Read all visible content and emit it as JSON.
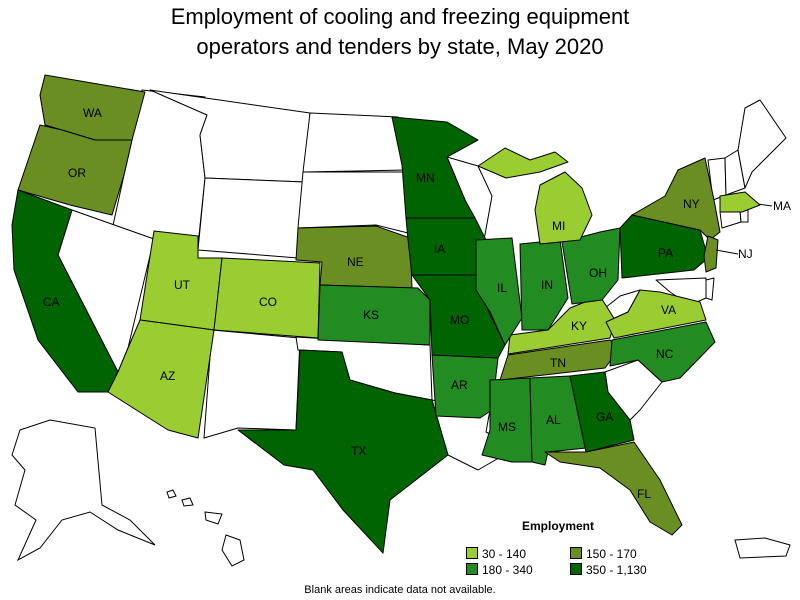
{
  "title_line1": "Employment of cooling and freezing equipment",
  "title_line2": "operators and tenders by state, May 2020",
  "legend": {
    "title": "Employment",
    "items": [
      {
        "label": "30 - 140",
        "color": "#9acd32"
      },
      {
        "label": "150 - 170",
        "color": "#6b8e23"
      },
      {
        "label": "180 - 340",
        "color": "#228b22"
      },
      {
        "label": "350 - 1,130",
        "color": "#006400"
      }
    ]
  },
  "note": "Blank areas indicate data not available.",
  "states": [
    {
      "abbr": "WA",
      "bin": 1
    },
    {
      "abbr": "OR",
      "bin": 1
    },
    {
      "abbr": "CA",
      "bin": 3
    },
    {
      "abbr": "UT",
      "bin": 0
    },
    {
      "abbr": "AZ",
      "bin": 0
    },
    {
      "abbr": "CO",
      "bin": 0
    },
    {
      "abbr": "NE",
      "bin": 1
    },
    {
      "abbr": "KS",
      "bin": 2
    },
    {
      "abbr": "TX",
      "bin": 3
    },
    {
      "abbr": "MN",
      "bin": 3
    },
    {
      "abbr": "IA",
      "bin": 3
    },
    {
      "abbr": "MO",
      "bin": 3
    },
    {
      "abbr": "AR",
      "bin": 2
    },
    {
      "abbr": "MS",
      "bin": 2
    },
    {
      "abbr": "AL",
      "bin": 2
    },
    {
      "abbr": "GA",
      "bin": 3
    },
    {
      "abbr": "FL",
      "bin": 1
    },
    {
      "abbr": "TN",
      "bin": 1
    },
    {
      "abbr": "KY",
      "bin": 0
    },
    {
      "abbr": "IL",
      "bin": 2
    },
    {
      "abbr": "IN",
      "bin": 2
    },
    {
      "abbr": "OH",
      "bin": 2
    },
    {
      "abbr": "MI",
      "bin": 0
    },
    {
      "abbr": "PA",
      "bin": 3
    },
    {
      "abbr": "NY",
      "bin": 1
    },
    {
      "abbr": "VA",
      "bin": 0
    },
    {
      "abbr": "NC",
      "bin": 2
    },
    {
      "abbr": "NJ",
      "bin": 1
    },
    {
      "abbr": "MA",
      "bin": 0
    }
  ]
}
